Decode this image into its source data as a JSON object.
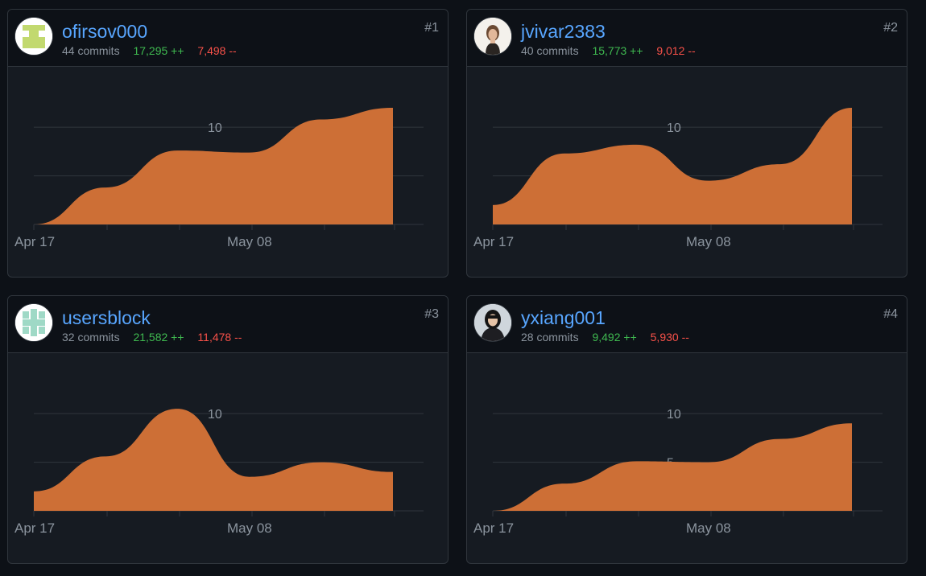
{
  "contributors": [
    {
      "rank": "#1",
      "username": "ofirsov000",
      "avatar_icon": "identicon-green",
      "commits": "44 commits",
      "additions": "17,295 ++",
      "deletions": "7,498 --",
      "chart_data": {
        "type": "area",
        "x_tick_labels": [
          "Apr 17",
          "May 08"
        ],
        "y_tick_labels": [
          "10"
        ],
        "ylim": [
          0,
          12
        ],
        "grid": true,
        "color": "#cd6f36",
        "x": [
          0,
          1,
          2,
          3,
          4,
          5
        ],
        "values": [
          0,
          3.8,
          7.6,
          7.4,
          10.8,
          12
        ]
      }
    },
    {
      "rank": "#2",
      "username": "jvivar2383",
      "avatar_icon": "user-photo",
      "commits": "40 commits",
      "additions": "15,773 ++",
      "deletions": "9,012 --",
      "chart_data": {
        "type": "area",
        "x_tick_labels": [
          "Apr 17",
          "May 08"
        ],
        "y_tick_labels": [
          "10"
        ],
        "ylim": [
          0,
          12
        ],
        "grid": true,
        "color": "#cd6f36",
        "x": [
          0,
          1,
          2,
          3,
          4,
          5
        ],
        "values": [
          2,
          7.3,
          8.2,
          4.5,
          6.2,
          12
        ]
      }
    },
    {
      "rank": "#3",
      "username": "usersblock",
      "avatar_icon": "identicon-teal",
      "commits": "32 commits",
      "additions": "21,582 ++",
      "deletions": "11,478 --",
      "chart_data": {
        "type": "area",
        "x_tick_labels": [
          "Apr 17",
          "May 08"
        ],
        "y_tick_labels": [
          "10"
        ],
        "ylim": [
          0,
          12
        ],
        "grid": true,
        "color": "#cd6f36",
        "x": [
          0,
          1,
          2,
          3,
          4,
          5
        ],
        "values": [
          2,
          5.6,
          10.5,
          3.5,
          5,
          4
        ]
      }
    },
    {
      "rank": "#4",
      "username": "yxiang001",
      "avatar_icon": "user-photo",
      "commits": "28 commits",
      "additions": "9,492 ++",
      "deletions": "5,930 --",
      "chart_data": {
        "type": "area",
        "x_tick_labels": [
          "Apr 17",
          "May 08"
        ],
        "y_tick_labels": [
          "10",
          "5"
        ],
        "ylim": [
          0,
          12
        ],
        "grid": true,
        "color": "#cd6f36",
        "x": [
          0,
          1,
          2,
          3,
          4,
          5
        ],
        "values": [
          0,
          2.8,
          5.1,
          5,
          7.4,
          9
        ]
      }
    }
  ]
}
